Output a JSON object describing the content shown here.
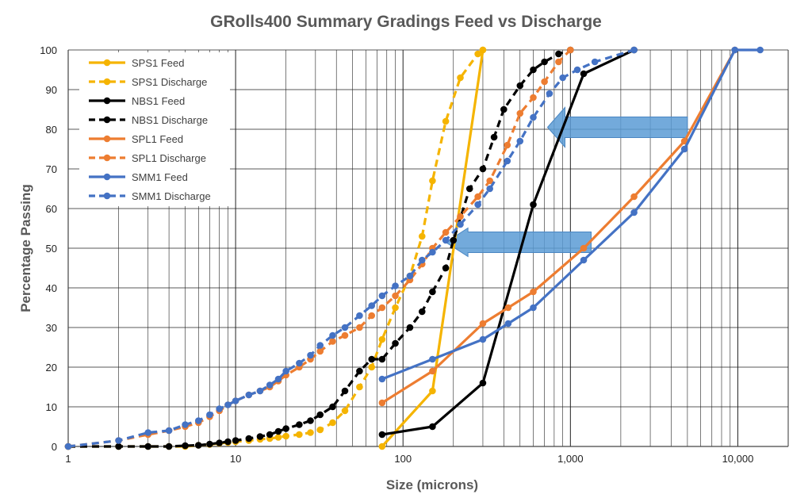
{
  "chart_data": {
    "type": "line",
    "title": "GRolls400 Summary Gradings Feed vs Discharge",
    "xlabel": "Size (microns)",
    "ylabel": "Percentage Passing",
    "xscale": "log",
    "xlim": [
      1,
      20000
    ],
    "ylim": [
      0,
      100
    ],
    "x_tick_labels": [
      {
        "value": 1,
        "label": "1"
      },
      {
        "value": 10,
        "label": "10"
      },
      {
        "value": 100,
        "label": "100"
      },
      {
        "value": 1000,
        "label": "1,000"
      },
      {
        "value": 10000,
        "label": "10,000"
      }
    ],
    "y_ticks": [
      0,
      10,
      20,
      30,
      40,
      50,
      60,
      70,
      80,
      90,
      100
    ],
    "grid": true,
    "legend_position": "top-left",
    "series": [
      {
        "name": "SPS1 Feed",
        "color": "#F5B400",
        "style": "solid",
        "points": [
          [
            75,
            0
          ],
          [
            150,
            14
          ],
          [
            300,
            100
          ]
        ]
      },
      {
        "name": "SPS1 Discharge",
        "color": "#F5B400",
        "style": "dashed",
        "points": [
          [
            1,
            0
          ],
          [
            2,
            0
          ],
          [
            3,
            0
          ],
          [
            4,
            0
          ],
          [
            5,
            0
          ],
          [
            6,
            0.3
          ],
          [
            7,
            0.5
          ],
          [
            8,
            0.8
          ],
          [
            9,
            1
          ],
          [
            10,
            1.2
          ],
          [
            12,
            1.5
          ],
          [
            14,
            1.8
          ],
          [
            16,
            2
          ],
          [
            18,
            2.3
          ],
          [
            20,
            2.6
          ],
          [
            24,
            3
          ],
          [
            28,
            3.5
          ],
          [
            32,
            4.2
          ],
          [
            38,
            6
          ],
          [
            45,
            9
          ],
          [
            55,
            15
          ],
          [
            65,
            20
          ],
          [
            75,
            27
          ],
          [
            90,
            35
          ],
          [
            110,
            43
          ],
          [
            130,
            53
          ],
          [
            150,
            67
          ],
          [
            180,
            82
          ],
          [
            220,
            93
          ],
          [
            280,
            99
          ],
          [
            300,
            100
          ]
        ]
      },
      {
        "name": "NBS1 Feed",
        "color": "#000000",
        "style": "solid",
        "points": [
          [
            75,
            3
          ],
          [
            150,
            5
          ],
          [
            300,
            16
          ],
          [
            600,
            61
          ],
          [
            1200,
            94
          ],
          [
            2400,
            100
          ]
        ]
      },
      {
        "name": "NBS1 Discharge",
        "color": "#000000",
        "style": "dashed",
        "points": [
          [
            1,
            0
          ],
          [
            2,
            0
          ],
          [
            3,
            0
          ],
          [
            4,
            0
          ],
          [
            5,
            0.2
          ],
          [
            6,
            0.3
          ],
          [
            7,
            0.6
          ],
          [
            8,
            0.9
          ],
          [
            9,
            1.2
          ],
          [
            10,
            1.5
          ],
          [
            12,
            2
          ],
          [
            14,
            2.5
          ],
          [
            16,
            3
          ],
          [
            18,
            3.8
          ],
          [
            20,
            4.5
          ],
          [
            24,
            5.5
          ],
          [
            28,
            6.5
          ],
          [
            32,
            8
          ],
          [
            38,
            10
          ],
          [
            45,
            14
          ],
          [
            55,
            19
          ],
          [
            65,
            22
          ],
          [
            75,
            22
          ],
          [
            90,
            26
          ],
          [
            110,
            30
          ],
          [
            130,
            34
          ],
          [
            150,
            39
          ],
          [
            180,
            45
          ],
          [
            200,
            52
          ],
          [
            250,
            65
          ],
          [
            300,
            70
          ],
          [
            350,
            78
          ],
          [
            400,
            85
          ],
          [
            500,
            91
          ],
          [
            600,
            95
          ],
          [
            700,
            97
          ],
          [
            850,
            99
          ],
          [
            1000,
            100
          ]
        ]
      },
      {
        "name": "SPL1 Feed",
        "color": "#ED7D31",
        "style": "solid",
        "points": [
          [
            75,
            11
          ],
          [
            150,
            19
          ],
          [
            300,
            31
          ],
          [
            425,
            35
          ],
          [
            600,
            39
          ],
          [
            1200,
            50
          ],
          [
            2400,
            63
          ],
          [
            4800,
            77
          ],
          [
            9600,
            100
          ]
        ]
      },
      {
        "name": "SPL1 Discharge",
        "color": "#ED7D31",
        "style": "dashed",
        "points": [
          [
            1,
            0
          ],
          [
            2,
            1.5
          ],
          [
            3,
            3
          ],
          [
            4,
            4
          ],
          [
            5,
            5
          ],
          [
            6,
            6
          ],
          [
            7,
            7.5
          ],
          [
            8,
            9
          ],
          [
            9,
            10.5
          ],
          [
            10,
            11.5
          ],
          [
            12,
            13
          ],
          [
            14,
            14
          ],
          [
            16,
            15
          ],
          [
            18,
            16.5
          ],
          [
            20,
            18
          ],
          [
            24,
            20
          ],
          [
            28,
            22
          ],
          [
            32,
            24
          ],
          [
            38,
            26.5
          ],
          [
            45,
            28
          ],
          [
            55,
            30
          ],
          [
            65,
            33
          ],
          [
            75,
            35
          ],
          [
            90,
            38
          ],
          [
            110,
            42
          ],
          [
            130,
            46
          ],
          [
            150,
            50
          ],
          [
            180,
            54
          ],
          [
            220,
            58
          ],
          [
            280,
            63
          ],
          [
            330,
            67
          ],
          [
            420,
            76
          ],
          [
            500,
            84
          ],
          [
            600,
            88
          ],
          [
            700,
            92
          ],
          [
            850,
            97
          ],
          [
            1000,
            100
          ]
        ]
      },
      {
        "name": "SMM1 Feed",
        "color": "#4472C4",
        "style": "solid",
        "points": [
          [
            75,
            17
          ],
          [
            150,
            22
          ],
          [
            300,
            27
          ],
          [
            425,
            31
          ],
          [
            600,
            35
          ],
          [
            1200,
            47
          ],
          [
            2400,
            59
          ],
          [
            4800,
            75
          ],
          [
            9600,
            100
          ],
          [
            13600,
            100
          ]
        ]
      },
      {
        "name": "SMM1 Discharge",
        "color": "#4472C4",
        "style": "dashed",
        "points": [
          [
            1,
            0
          ],
          [
            2,
            1.5
          ],
          [
            3,
            3.5
          ],
          [
            4,
            4
          ],
          [
            5,
            5.5
          ],
          [
            6,
            6.5
          ],
          [
            7,
            8
          ],
          [
            8,
            9.5
          ],
          [
            9,
            10.5
          ],
          [
            10,
            11.5
          ],
          [
            12,
            13
          ],
          [
            14,
            14
          ],
          [
            16,
            15.5
          ],
          [
            18,
            17
          ],
          [
            20,
            19
          ],
          [
            24,
            21
          ],
          [
            28,
            23
          ],
          [
            32,
            25.5
          ],
          [
            38,
            28
          ],
          [
            45,
            30
          ],
          [
            55,
            33
          ],
          [
            65,
            35.5
          ],
          [
            75,
            38
          ],
          [
            90,
            40.5
          ],
          [
            110,
            43
          ],
          [
            130,
            47
          ],
          [
            150,
            49
          ],
          [
            180,
            52
          ],
          [
            220,
            56
          ],
          [
            280,
            61
          ],
          [
            330,
            65
          ],
          [
            420,
            72
          ],
          [
            500,
            77
          ],
          [
            600,
            83
          ],
          [
            750,
            89
          ],
          [
            900,
            93
          ],
          [
            1100,
            95
          ],
          [
            1400,
            97
          ],
          [
            2400,
            100
          ]
        ]
      }
    ]
  },
  "colors": {
    "arrow_fill": "#5B9BD5",
    "grid": "#222222",
    "axis": "#444444"
  }
}
